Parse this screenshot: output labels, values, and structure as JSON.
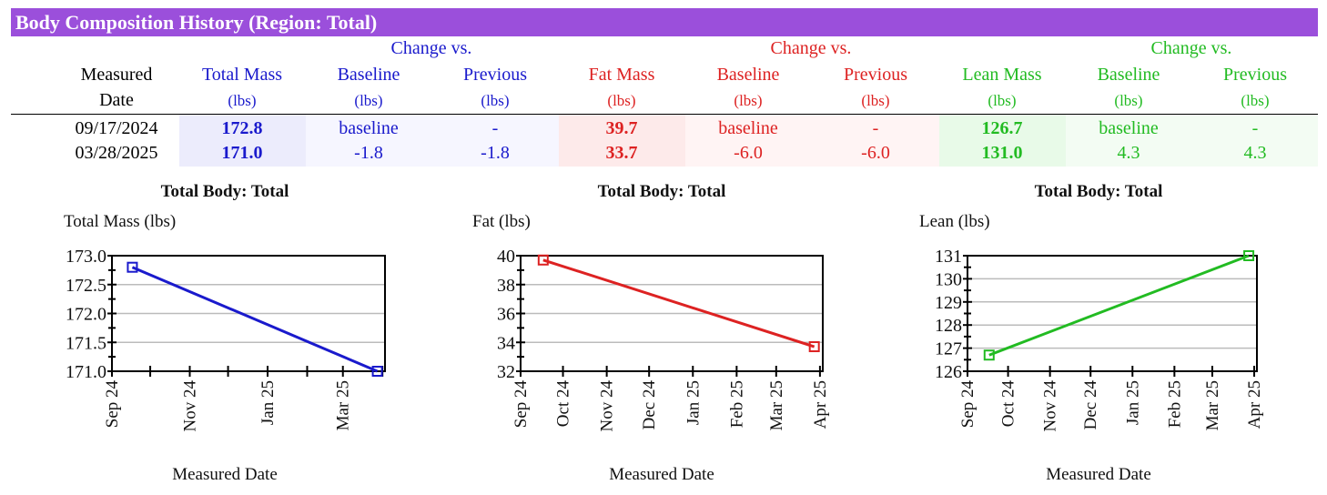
{
  "title": "Body Composition History (Region: Total)",
  "colors": {
    "header": "#9b4fdb",
    "total": "#1a1acc",
    "fat": "#dd2222",
    "lean": "#22bb22"
  },
  "table": {
    "group_headers": [
      "Change vs.",
      "Change vs.",
      "Change vs."
    ],
    "columns": [
      {
        "line1": "Measured",
        "line2": "Date"
      },
      {
        "line1": "Total Mass",
        "line2": "(lbs)"
      },
      {
        "line1": "Baseline",
        "line2": "(lbs)"
      },
      {
        "line1": "Previous",
        "line2": "(lbs)"
      },
      {
        "line1": "Fat Mass",
        "line2": "(lbs)"
      },
      {
        "line1": "Baseline",
        "line2": "(lbs)"
      },
      {
        "line1": "Previous",
        "line2": "(lbs)"
      },
      {
        "line1": "Lean Mass",
        "line2": "(lbs)"
      },
      {
        "line1": "Baseline",
        "line2": "(lbs)"
      },
      {
        "line1": "Previous",
        "line2": "(lbs)"
      }
    ],
    "rows": [
      [
        "09/17/2024",
        "172.8",
        "baseline",
        "-",
        "39.7",
        "baseline",
        "-",
        "126.7",
        "baseline",
        "-"
      ],
      [
        "03/28/2025",
        "171.0",
        "-1.8",
        "-1.8",
        "33.7",
        "-6.0",
        "-6.0",
        "131.0",
        "4.3",
        "4.3"
      ]
    ]
  },
  "chart_data": [
    {
      "type": "line",
      "title": "Total Body: Total",
      "ylabel": "Total Mass (lbs)",
      "xlabel": "Measured Date",
      "x": [
        "2024-09-17",
        "2025-03-28"
      ],
      "values": [
        172.8,
        171.0
      ],
      "ylim": [
        171,
        173
      ],
      "yticks": [
        "171.0",
        "171.5",
        "172.0",
        "172.5",
        "173.0"
      ],
      "xticks": [
        "Sep 24",
        "Nov 24",
        "Jan 25",
        "Mar 25"
      ],
      "grid": true,
      "color": "#1a1acc"
    },
    {
      "type": "line",
      "title": "Total Body: Total",
      "ylabel": "Fat (lbs)",
      "xlabel": "Measured Date",
      "x": [
        "2024-09-17",
        "2025-03-28"
      ],
      "values": [
        39.7,
        33.7
      ],
      "ylim": [
        32,
        40
      ],
      "yticks": [
        "32",
        "34",
        "36",
        "38",
        "40"
      ],
      "xticks": [
        "Sep 24",
        "Oct 24",
        "Nov 24",
        "Dec 24",
        "Jan 25",
        "Feb 25",
        "Mar 25",
        "Apr 25"
      ],
      "grid": true,
      "color": "#dd2222"
    },
    {
      "type": "line",
      "title": "Total Body: Total",
      "ylabel": "Lean (lbs)",
      "xlabel": "Measured Date",
      "x": [
        "2024-09-17",
        "2025-03-28"
      ],
      "values": [
        126.7,
        131.0
      ],
      "ylim": [
        126,
        131
      ],
      "yticks": [
        "126",
        "127",
        "128",
        "129",
        "130",
        "131"
      ],
      "xticks": [
        "Sep 24",
        "Oct 24",
        "Nov 24",
        "Dec 24",
        "Jan 25",
        "Feb 25",
        "Mar 25",
        "Apr 25"
      ],
      "grid": true,
      "color": "#22bb22"
    }
  ]
}
